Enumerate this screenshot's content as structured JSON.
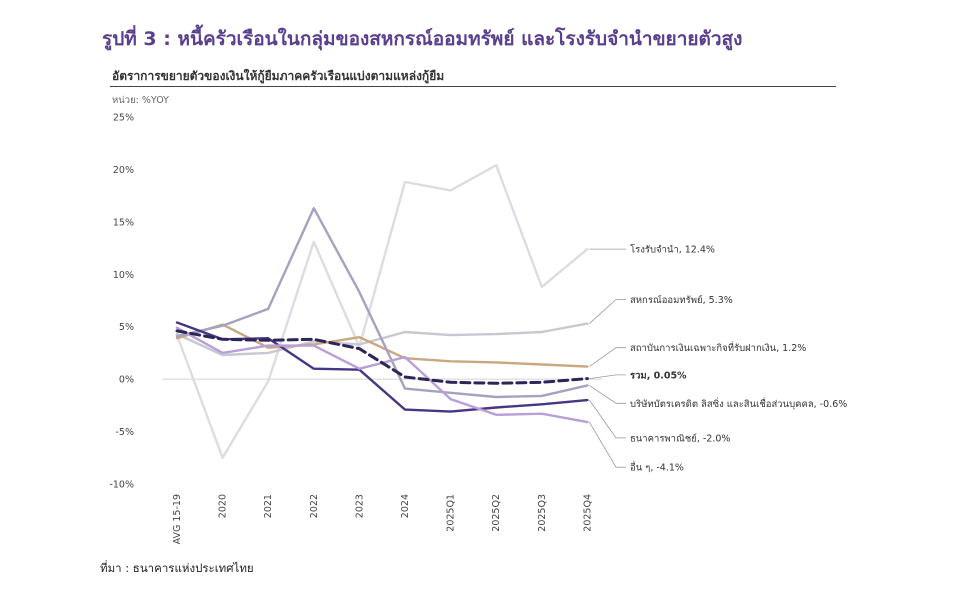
{
  "figure": {
    "title": "รูปที่ 3 : หนี้ครัวเรือนในกลุ่มของสหกรณ์ออมทรัพย์ และโรงรับจำนำขยายตัวสูง",
    "subtitle": "อัตราการขยายตัวของเงินให้กู้ยืมภาคครัวเรือนแบ่งตามแหล่งกู้ยืม",
    "unit": "หน่วย: %YOY",
    "source": "ที่มา : ธนาคารแห่งประเทศไทย"
  },
  "chart_data": {
    "type": "line",
    "title": "อัตราการขยายตัวของเงินให้กู้ยืมภาคครัวเรือนแบ่งตามแหล่งกู้ยืม",
    "ylabel": "%YOY",
    "xlabel": "",
    "ylim": [
      -10,
      25
    ],
    "yticks": [
      -10,
      -5,
      0,
      5,
      10,
      15,
      20,
      25
    ],
    "ytick_labels": [
      "-10%",
      "-5%",
      "0%",
      "5%",
      "10%",
      "15%",
      "20%",
      "25%"
    ],
    "categories": [
      "AVG 15-19",
      "2020",
      "2021",
      "2022",
      "2023",
      "2024",
      "2025Q1",
      "2025Q2",
      "2025Q3",
      "2025Q4"
    ],
    "grid": false,
    "legend": "right (direct labels)",
    "series": [
      {
        "name": "โรงรับจำนำ",
        "end_label": "โรงรับจำนำ, 12.4%",
        "color": "#dcdce3",
        "dash": false,
        "bold": false,
        "values": [
          4.2,
          -7.5,
          -0.2,
          13.1,
          3.1,
          18.8,
          18.0,
          20.4,
          8.8,
          12.4
        ]
      },
      {
        "name": "สหกรณ์ออมทรัพย์",
        "end_label": "สหกรณ์ออมทรัพย์, 5.3%",
        "color": "#c8c8d2",
        "dash": false,
        "bold": false,
        "values": [
          4.3,
          2.3,
          2.5,
          3.6,
          3.3,
          4.5,
          4.2,
          4.3,
          4.5,
          5.3
        ]
      },
      {
        "name": "สถาบันการเงินเฉพาะกิจที่รับฝากเงิน",
        "end_label": "สถาบันการเงินเฉพาะกิจที่รับฝากเงิน, 1.2%",
        "color": "#c9a77f",
        "dash": false,
        "bold": false,
        "values": [
          3.9,
          5.2,
          3.0,
          3.3,
          4.0,
          2.0,
          1.7,
          1.6,
          1.4,
          1.2
        ]
      },
      {
        "name": "บริษัทบัตรเครดิต ลิสซิ่ง และสินเชื่อส่วนบุคคล",
        "end_label": "บริษัทบัตรเครดิต ลิสซิ่ง และสินเชื่อส่วนบุคคล, -0.6%",
        "color": "#a6a1c0",
        "dash": false,
        "bold": false,
        "values": [
          4.1,
          5.1,
          6.7,
          16.3,
          8.3,
          -0.9,
          -1.3,
          -1.7,
          -1.6,
          -0.6
        ]
      },
      {
        "name": "ธนาคารพาณิชย์",
        "end_label": "ธนาคารพาณิชย์, -2.0%",
        "color": "#4a3585",
        "dash": false,
        "bold": false,
        "values": [
          5.4,
          3.8,
          3.9,
          1.0,
          0.9,
          -2.9,
          -3.1,
          -2.7,
          -2.4,
          -2.0
        ]
      },
      {
        "name": "อื่น ๆ",
        "end_label": "อื่น ๆ, -4.1%",
        "color": "#b99fd8",
        "dash": false,
        "bold": false,
        "values": [
          4.9,
          2.5,
          3.2,
          3.2,
          1.0,
          2.1,
          -1.9,
          -3.4,
          -3.3,
          -4.1
        ]
      },
      {
        "name": "รวม",
        "end_label": "รวม, 0.05%",
        "color": "#2c2558",
        "dash": true,
        "bold": true,
        "values": [
          4.6,
          3.8,
          3.7,
          3.8,
          2.9,
          0.2,
          -0.3,
          -0.4,
          -0.3,
          0.05
        ]
      }
    ],
    "annotations": [
      {
        "series": "โรงรับจำนำ",
        "label_value": 12.4,
        "anchor_value": 12.4
      },
      {
        "series": "สหกรณ์ออมทรัพย์",
        "label_value": 7.6,
        "anchor_value": 5.3
      },
      {
        "series": "สถาบันการเงินเฉพาะกิจที่รับฝากเงิน",
        "label_value": 3.0,
        "anchor_value": 1.2
      },
      {
        "series": "รวม",
        "label_value": 0.4,
        "anchor_value": 0.05
      },
      {
        "series": "บริษัทบัตรเครดิต ลิสซิ่ง และสินเชื่อส่วนบุคคล",
        "label_value": -2.3,
        "anchor_value": -0.6
      },
      {
        "series": "ธนาคารพาณิชย์",
        "label_value": -5.6,
        "anchor_value": -2.0
      },
      {
        "series": "อื่น ๆ",
        "label_value": -8.4,
        "anchor_value": -4.1
      }
    ]
  }
}
